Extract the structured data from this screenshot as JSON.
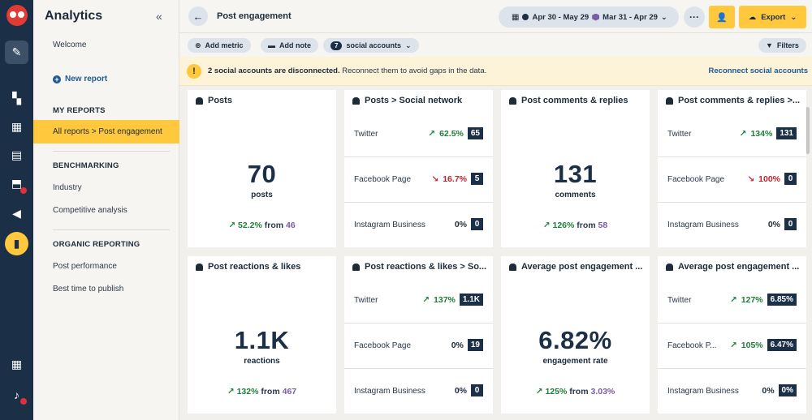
{
  "sidebar": {
    "title": "Analytics",
    "welcome": "Welcome",
    "new_report": "New report",
    "sections": {
      "my_reports": "MY REPORTS",
      "benchmarking": "BENCHMARKING",
      "organic": "ORGANIC REPORTING"
    },
    "items": {
      "all_reports": "All reports > Post engagement",
      "industry": "Industry",
      "competitive": "Competitive analysis",
      "post_performance": "Post performance",
      "best_time": "Best time to publish"
    }
  },
  "header": {
    "title": "Post engagement",
    "date_primary": "Apr 30 - May 29",
    "date_compare": "Mar 31 - Apr 29",
    "export_label": "Export"
  },
  "toolbar": {
    "add_metric": "Add metric",
    "add_note": "Add note",
    "accounts_count": "7",
    "accounts_label": "social accounts",
    "filters": "Filters"
  },
  "banner": {
    "bold": "2 social accounts are disconnected.",
    "text": " Reconnect them to avoid gaps in the data.",
    "link": "Reconnect social accounts"
  },
  "cards": {
    "posts": {
      "title": "Posts",
      "value": "70",
      "label": "posts",
      "change": "52.2%",
      "from": "from",
      "ref": "46"
    },
    "posts_network": {
      "title": "Posts > Social network",
      "rows": [
        {
          "label": "Twitter",
          "change": "62.5%",
          "value": "65"
        },
        {
          "label": "Facebook Page",
          "change": "16.7%",
          "value": "5"
        },
        {
          "label": "Instagram Business",
          "change": "0%",
          "value": "0"
        }
      ]
    },
    "comments": {
      "title": "Post comments & replies",
      "value": "131",
      "label": "comments",
      "change": "126%",
      "from": "from",
      "ref": "58"
    },
    "comments_network": {
      "title": "Post comments & replies >...",
      "rows": [
        {
          "label": "Twitter",
          "change": "134%",
          "value": "131"
        },
        {
          "label": "Facebook Page",
          "change": "100%",
          "value": "0"
        },
        {
          "label": "Instagram Business",
          "change": "0%",
          "value": "0"
        }
      ]
    },
    "reactions": {
      "title": "Post reactions & likes",
      "value": "1.1K",
      "label": "reactions",
      "change": "132%",
      "from": "from",
      "ref": "467"
    },
    "reactions_network": {
      "title": "Post reactions & likes > So...",
      "rows": [
        {
          "label": "Twitter",
          "change": "137%",
          "value": "1.1K"
        },
        {
          "label": "Facebook Page",
          "change": "0%",
          "value": "19"
        },
        {
          "label": "Instagram Business",
          "change": "0%",
          "value": "0"
        }
      ]
    },
    "engagement": {
      "title": "Average post engagement ...",
      "value": "6.82%",
      "label": "engagement rate",
      "change": "125%",
      "from": "from",
      "ref": "3.03%"
    },
    "engagement_network": {
      "title": "Average post engagement ...",
      "rows": [
        {
          "label": "Twitter",
          "change": "127%",
          "value": "6.85%"
        },
        {
          "label": "Facebook P...",
          "change": "105%",
          "value": "6.47%"
        },
        {
          "label": "Instagram Business",
          "change": "0%",
          "value": "0%"
        }
      ]
    }
  },
  "colors": {
    "accent": "#ffc83d",
    "navy": "#1b2f47",
    "positive": "#1e7f3a",
    "negative": "#c32029",
    "compare": "#7a5ca8"
  }
}
